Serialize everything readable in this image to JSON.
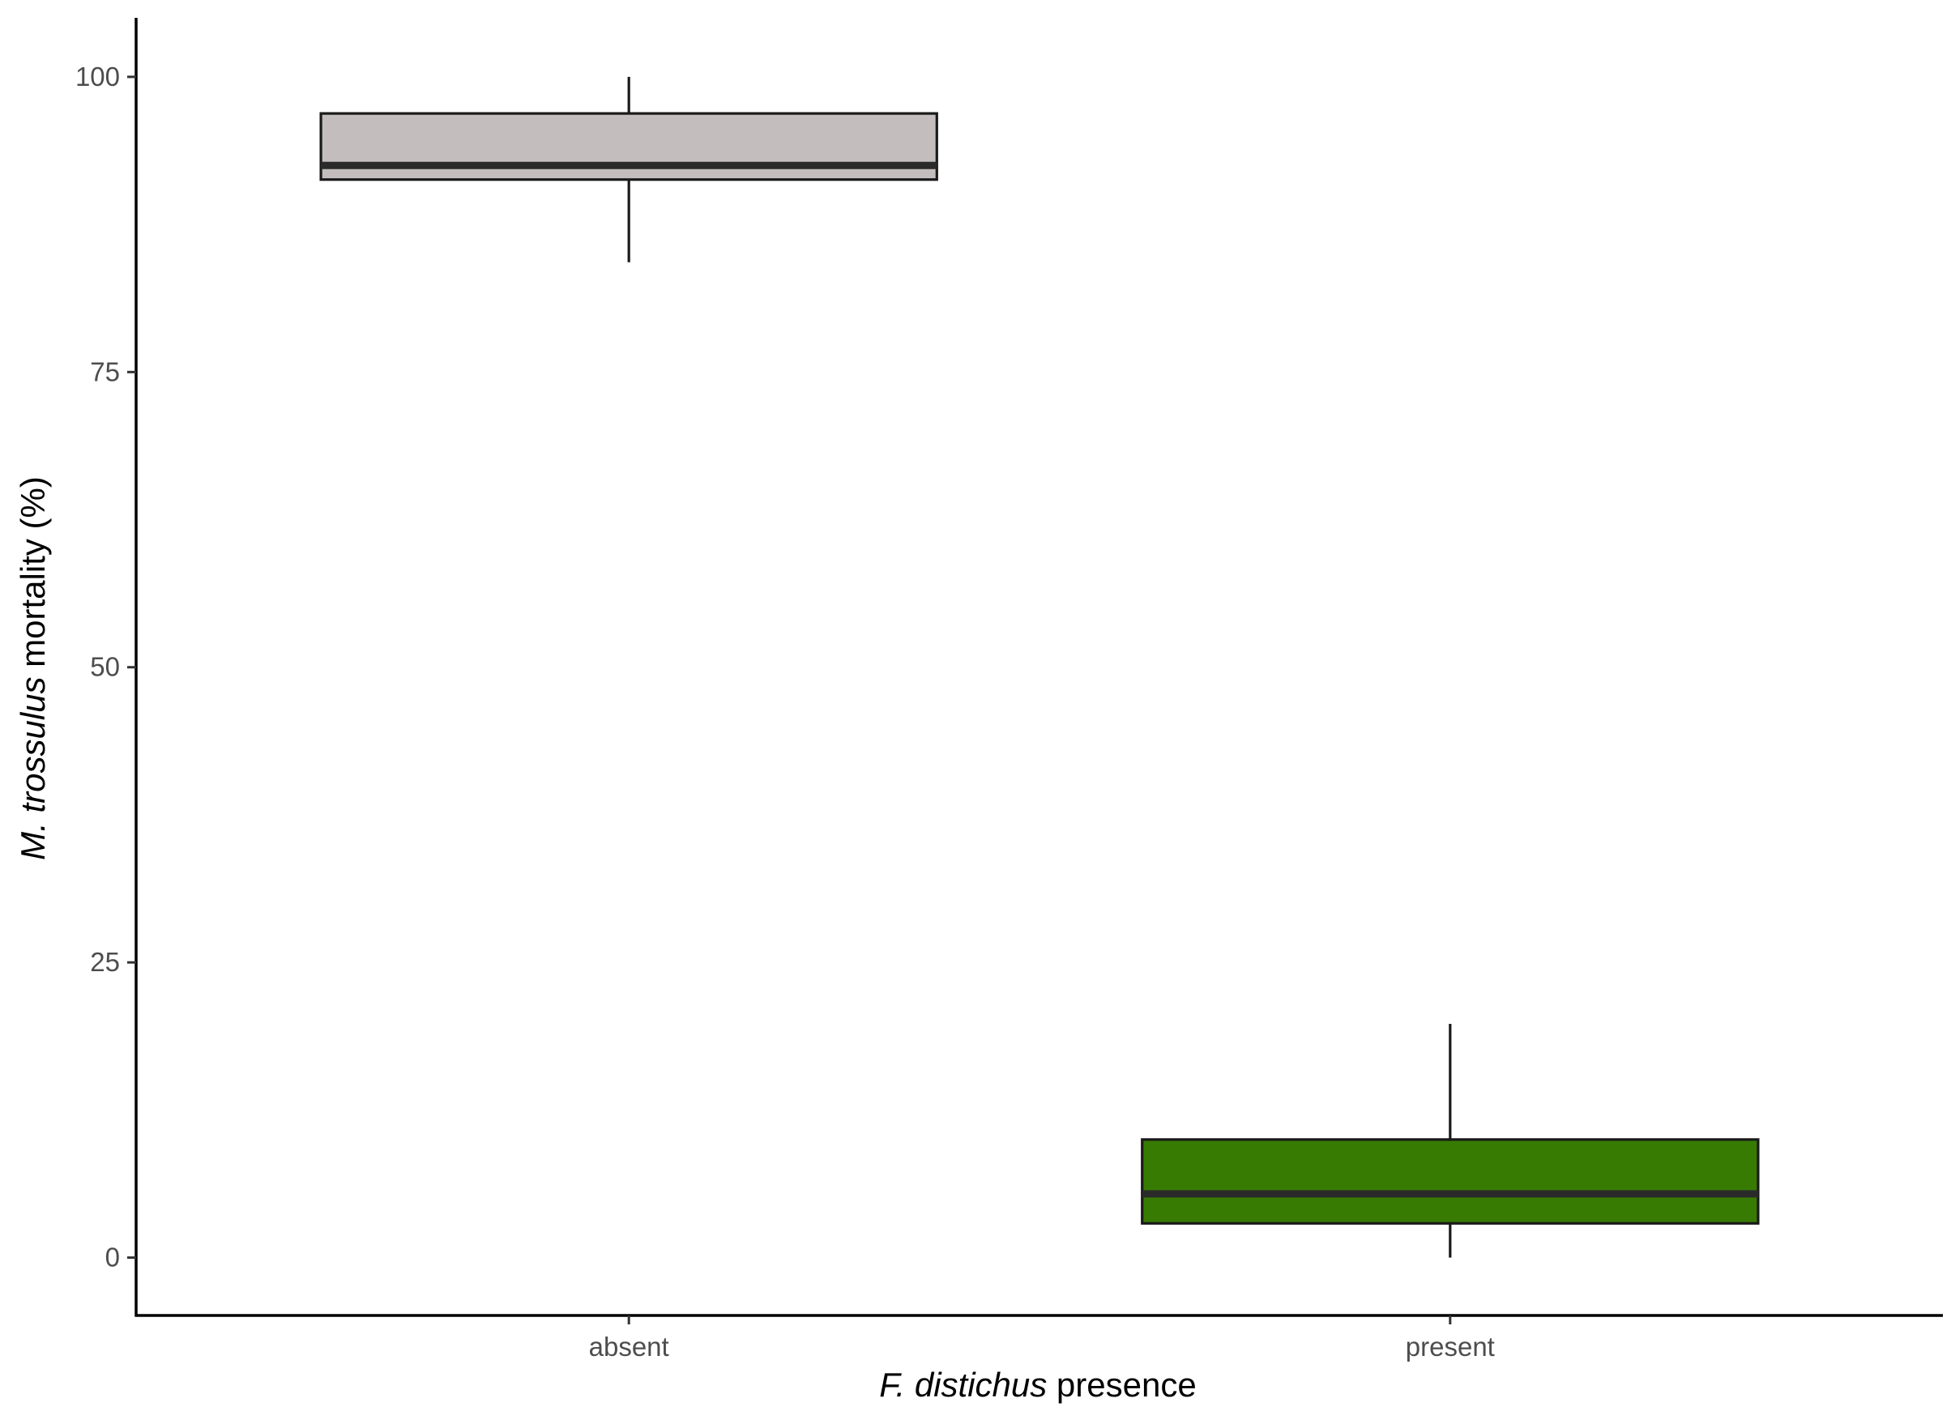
{
  "chart_data": {
    "type": "box",
    "categories": [
      "absent",
      "present"
    ],
    "boxes": [
      {
        "category": "absent",
        "min": 84.3,
        "q1": 91.3,
        "median": 92.5,
        "q3": 96.9,
        "max": 100,
        "fill": "#c3bdbd"
      },
      {
        "category": "present",
        "min": 0,
        "q1": 2.9,
        "median": 5.4,
        "q3": 10.0,
        "max": 19.8,
        "fill": "#377b03"
      }
    ],
    "xlabel": {
      "italic": "F. distichus",
      "plain": " presence"
    },
    "ylabel": {
      "italic": "M. trossulus",
      "plain": " mortality (%)"
    },
    "yticks": [
      0,
      25,
      50,
      75,
      100
    ],
    "ylim": [
      -4.9,
      105
    ],
    "grid": false,
    "legend": "none"
  }
}
